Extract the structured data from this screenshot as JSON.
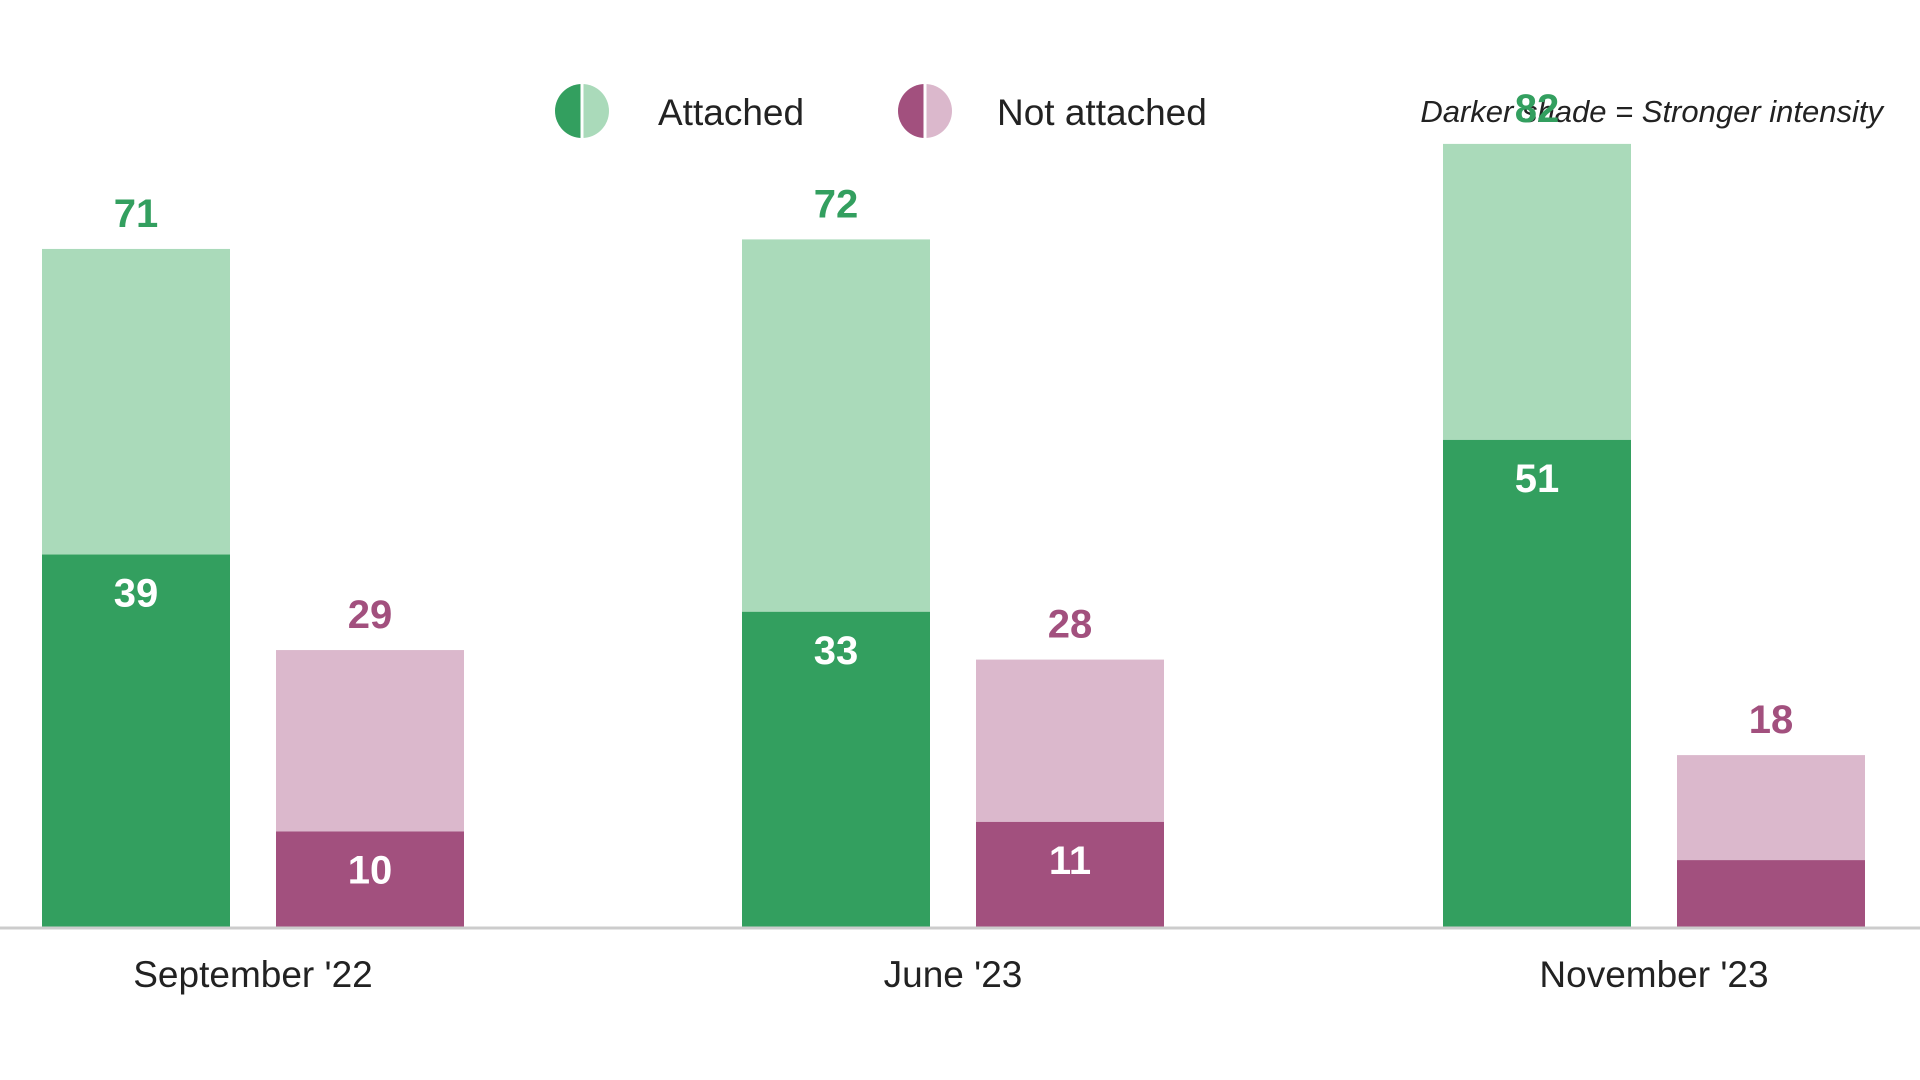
{
  "chart_data": {
    "type": "bar",
    "stacked": true,
    "categories": [
      "September '22",
      "June '23",
      "November '23"
    ],
    "series": [
      {
        "name": "Attached",
        "total": [
          71,
          72,
          82
        ],
        "stronger": [
          39,
          33,
          51
        ],
        "total_labels": [
          "71",
          "72",
          "82"
        ],
        "stronger_labels": [
          "39",
          "33",
          "51"
        ],
        "color_dark": "#339F5F",
        "color_light": "#AADABA",
        "label_color": "#339F5F"
      },
      {
        "name": "Not attached",
        "total": [
          29,
          28,
          18
        ],
        "stronger": [
          10,
          11,
          7
        ],
        "total_labels": [
          "29",
          "28",
          "18"
        ],
        "stronger_labels": [
          "10",
          "11",
          ""
        ],
        "color_dark": "#A2507E",
        "color_light": "#DBB8CC",
        "label_color": "#A2507E"
      }
    ],
    "legend": {
      "note": "Darker shade = Stronger intensity",
      "placement": "top"
    },
    "ylim": [
      0,
      90
    ],
    "grid": false,
    "axis_line_color": "#CCCCCC"
  }
}
